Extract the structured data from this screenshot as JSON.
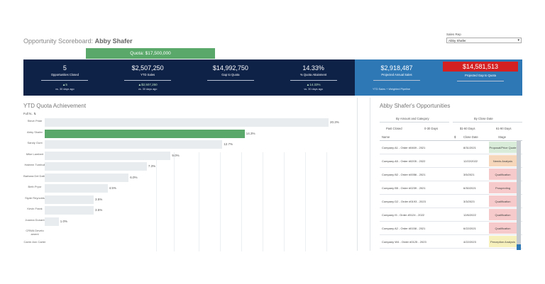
{
  "header": {
    "title_prefix": "Opportunity Scoreboard:",
    "title_name": "Abby Shafer",
    "quota_label": "Quota: $17,500,000"
  },
  "sales_rep": {
    "label": "Sales Rep",
    "selected": "Abby Shafer"
  },
  "kpis": [
    {
      "value": "5",
      "label": "Opportunities Closed",
      "change": "▲5",
      "compare": "vs. 30 days ago"
    },
    {
      "value": "$2,507,250",
      "label": "YTD Sales",
      "change": "▲$2,507,250",
      "compare": "vs. 30 days ago"
    },
    {
      "value": "$14,992,750",
      "label": "Gap to Quota"
    },
    {
      "value": "14.33%",
      "label": "% Quota Attainment",
      "change": "▲14.33%",
      "compare": "vs. 30 days ago"
    }
  ],
  "projected": {
    "annual_value": "$2,918,487",
    "annual_label": "Projected Annual Sales",
    "note": "YTD Sales + Weighted Pipeline",
    "gap_value": "$14,581,513",
    "gap_label": "Projected Gap to Quota"
  },
  "ytd": {
    "title": "YTD Quota Achievement",
    "sort_label": "Full N..",
    "reps": [
      {
        "name": "Steve Pride",
        "pct": 20.3,
        "label": "20.3%"
      },
      {
        "name": "Abby Shafer",
        "pct": 14.3,
        "label": "14.3%",
        "highlight": true
      },
      {
        "name": "Sandy Gunt",
        "pct": 12.7,
        "label": "12.7%"
      },
      {
        "name": "Mike Lambert",
        "pct": 9.0,
        "label": "9.0%"
      },
      {
        "name": "Haleem Tumbull",
        "pct": 7.3,
        "label": "7.3%"
      },
      {
        "name": "Barbara Del Dalto",
        "pct": 6.0,
        "label": "6.0%"
      },
      {
        "name": "Beth Pryor",
        "pct": 4.5,
        "label": "4.5%"
      },
      {
        "name": "Slyde Reynolds",
        "pct": 3.5,
        "label": "3.5%"
      },
      {
        "name": "Kevin Frank",
        "pct": 3.5,
        "label": "3.5%"
      },
      {
        "name": "Joanna Dunant",
        "pct": 1.0,
        "label": "1.0%"
      },
      {
        "name": "CRWA Develo ament",
        "pct": 0,
        "label": ""
      },
      {
        "name": "Carrie Ann Carter",
        "pct": 0,
        "label": ""
      }
    ]
  },
  "opps": {
    "title": "Abby Shafer's Opportunities",
    "tab1": "By Amount and Category",
    "tab2": "By Close Date",
    "filters": [
      "Past Closed",
      "0-30 Days",
      "$1-60 Days",
      "61-90 Days"
    ],
    "columns": {
      "name": "Name",
      "sort_icon": "$",
      "close": "Close Date",
      "stage": "Stage"
    },
    "rows": [
      {
        "name": "Company A1 - Order #0469 - 2021",
        "date": "8/31/2021",
        "stage": "Proposal/Price Quote",
        "color": "#d8ecd9"
      },
      {
        "name": "Company A5 - Order #0205 - 2022",
        "date": "12/22/2022",
        "stage": "Needs Analysis",
        "color": "#f6d7bc"
      },
      {
        "name": "Company B2 - Order #0056 - 2021",
        "date": "3/5/2021",
        "stage": "Qualification",
        "color": "#f6caca"
      },
      {
        "name": "Company B5 - Order #0239 - 2021",
        "date": "6/30/2021",
        "stage": "Prospecting",
        "color": "#f6caca"
      },
      {
        "name": "Company D2 - Order #0193 - 2023",
        "date": "3/3/2023",
        "stage": "Qualification",
        "color": "#f6caca"
      },
      {
        "name": "Company I5 - Order #0124 - 2022",
        "date": "12/6/2022",
        "stage": "Qualification",
        "color": "#f6caca"
      },
      {
        "name": "Company A2 - Order #0158 - 2021",
        "date": "6/22/2021",
        "stage": "Qualification",
        "color": "#f6caca"
      },
      {
        "name": "Company W4 - Order #0125 - 2023",
        "date": "4/22/2023",
        "stage": "Perception Analysis",
        "color": "#f6f0bc"
      }
    ]
  }
}
